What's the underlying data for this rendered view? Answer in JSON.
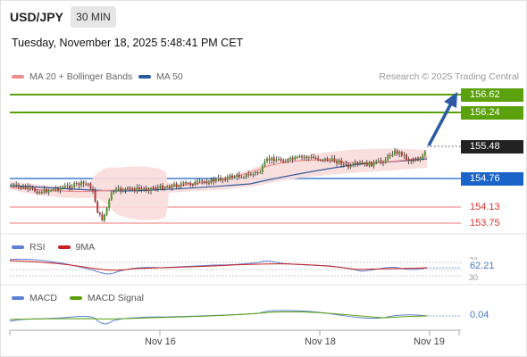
{
  "header": {
    "symbol": "USD/JPY",
    "timeframe": "30 MIN",
    "datetime": "Tuesday, November 18, 2025 5:48:41 PM CET"
  },
  "legend": {
    "ma20": "MA 20 + Bollinger Bands",
    "ma50": "MA 50",
    "ma20_color": "#f08a8a",
    "ma50_color": "#2d5a9c",
    "research": "Research © 2025 Trading Central"
  },
  "levels": {
    "resistance2": "156.62",
    "resistance1": "156.24",
    "last_price": "155.48",
    "pivot": "154.76",
    "support1": "154.13",
    "support2": "153.75"
  },
  "rsi": {
    "label": "RSI",
    "ma_label": "9MA",
    "value": "62.21",
    "level_high": "70",
    "level_low": "30",
    "rsi_color": "#5b7fd4",
    "ma_color": "#cc1f1f"
  },
  "macd": {
    "label": "MACD",
    "signal_label": "MACD Signal",
    "value": "0.04",
    "macd_color": "#5b7fd4",
    "signal_color": "#5ba10c"
  },
  "xaxis": {
    "labels": [
      "Nov 16",
      "Nov 18",
      "Nov 19"
    ]
  },
  "colors": {
    "green": "#5ba10c",
    "blue": "#1a63c8",
    "red": "#f08a8a",
    "bull": "#4f9a2a",
    "bear": "#b33a3a"
  }
}
